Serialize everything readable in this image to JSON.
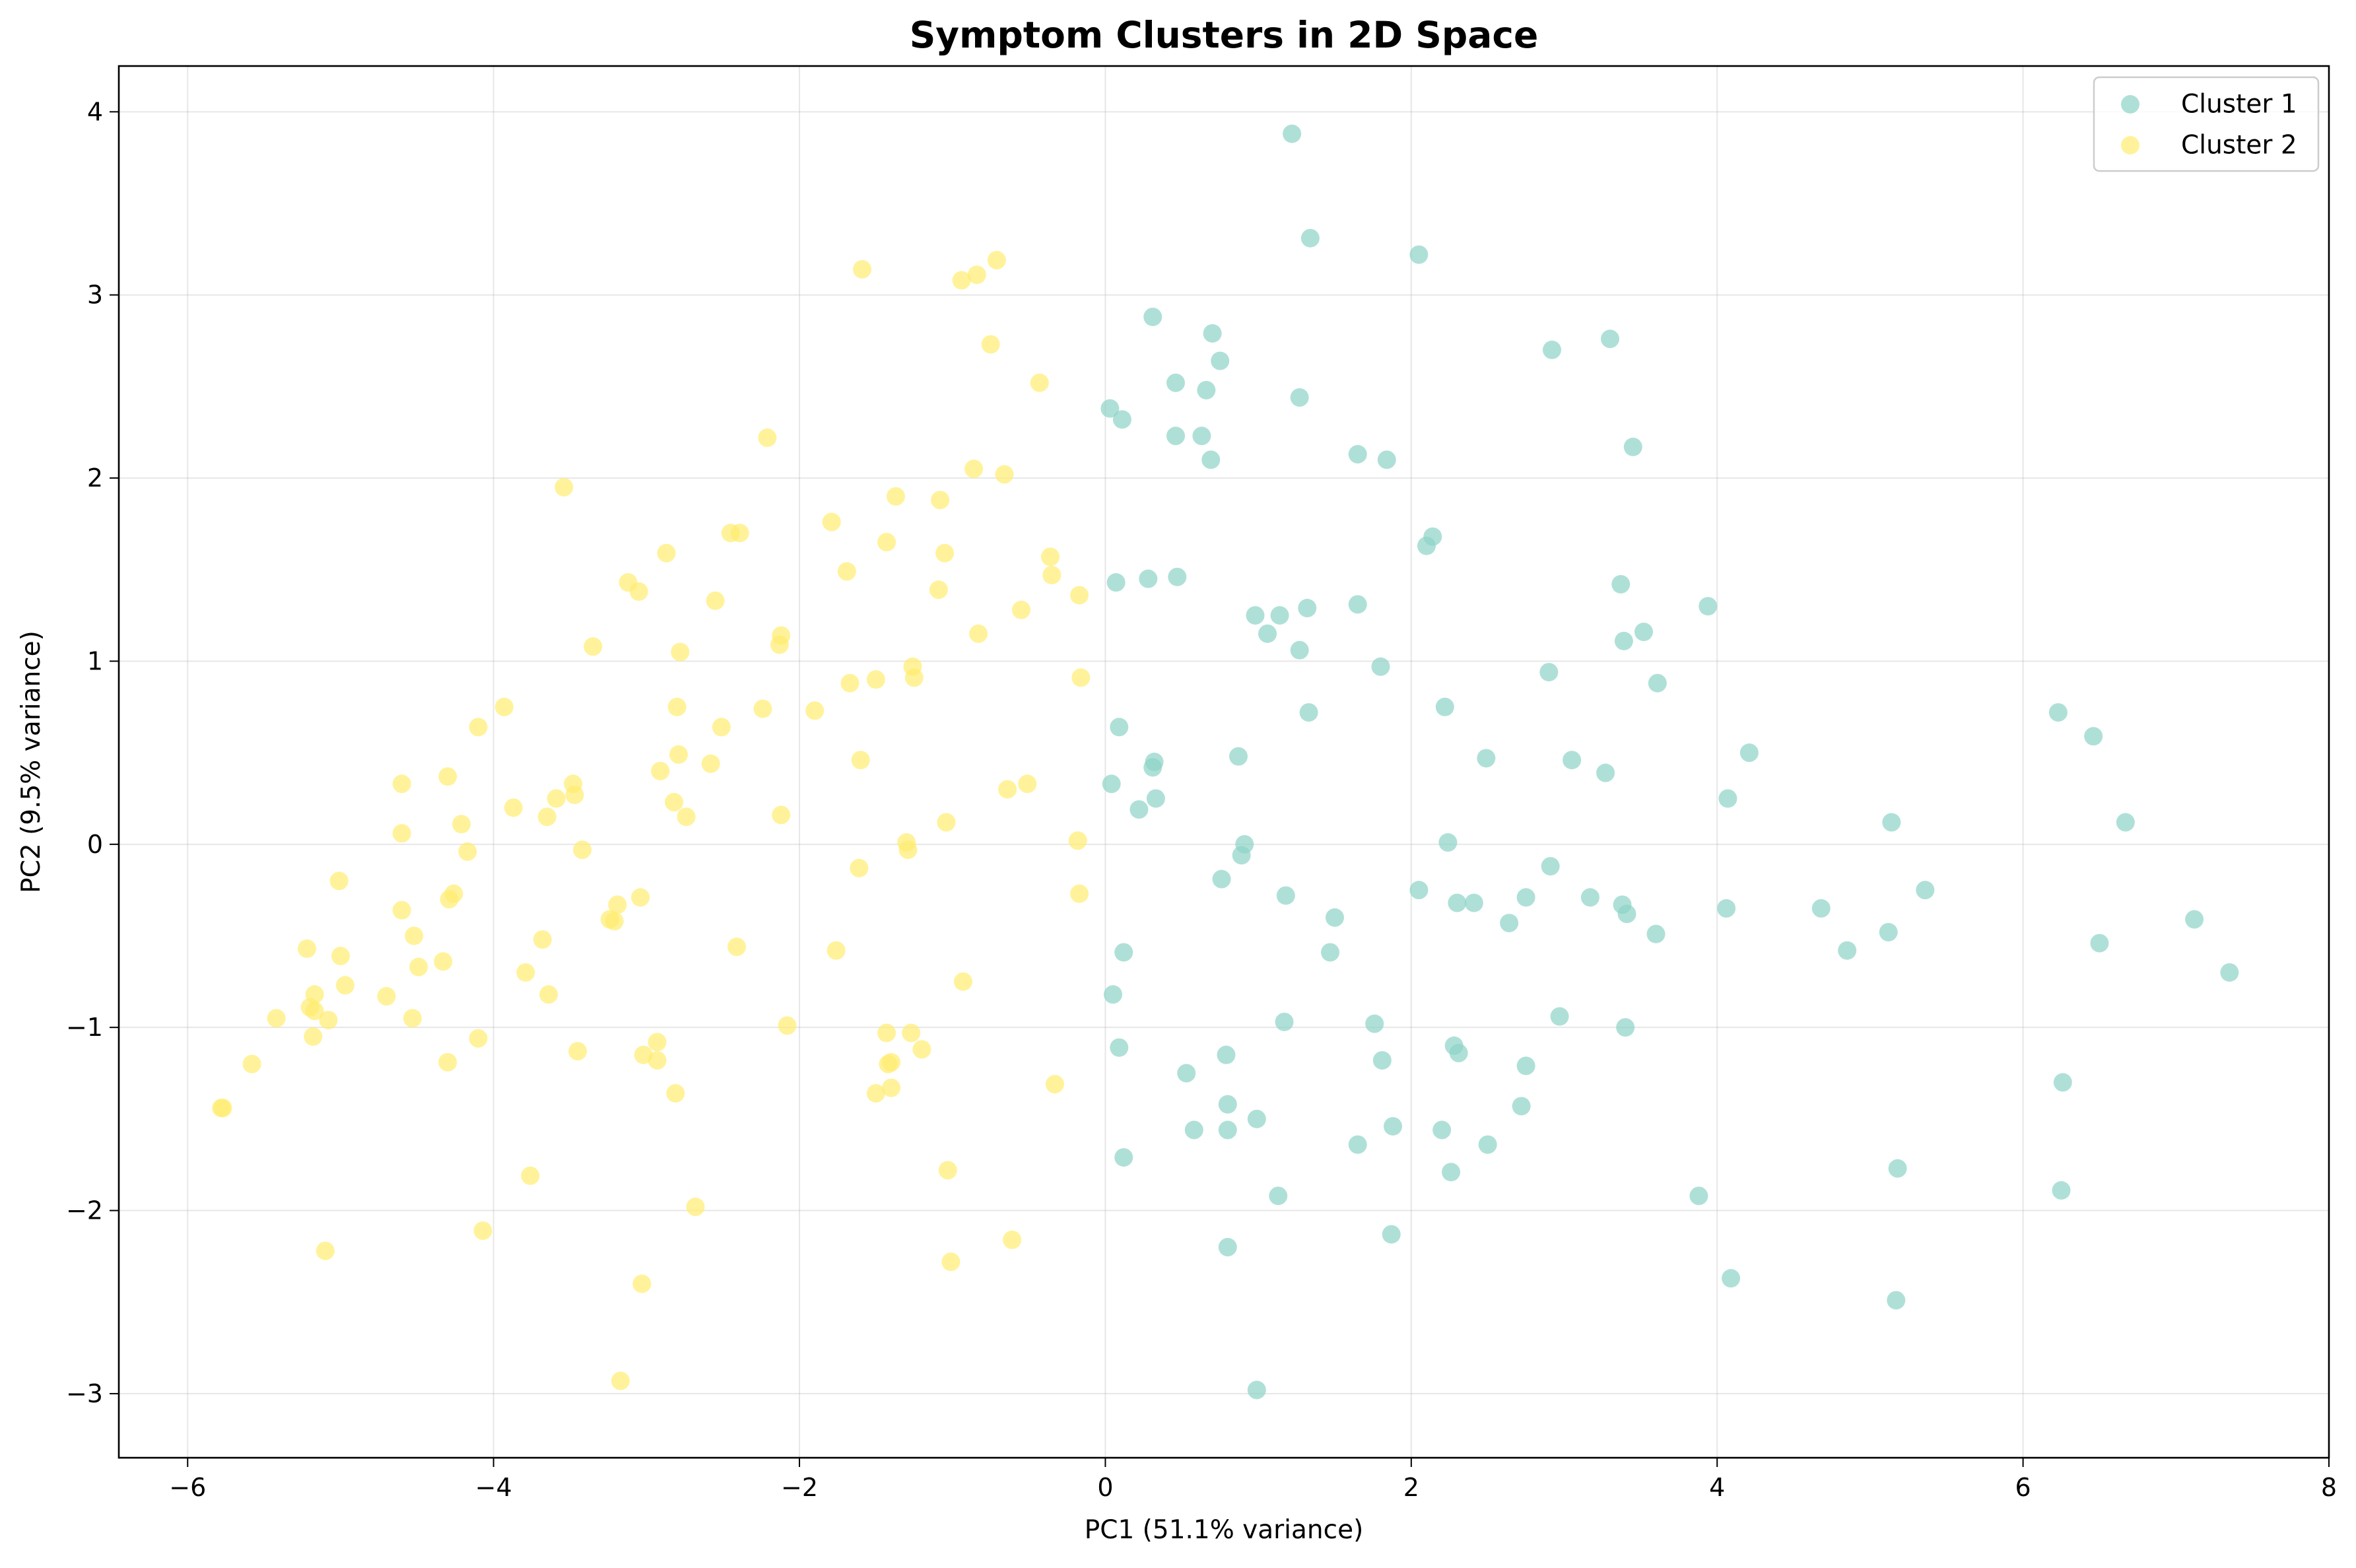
{
  "chart_data": {
    "type": "scatter",
    "title": "Symptom Clusters in 2D Space",
    "xlabel": "PC1 (51.1% variance)",
    "ylabel": "PC2 (9.5% variance)",
    "xlim": [
      -6.45,
      8.0
    ],
    "ylim": [
      -3.35,
      4.25
    ],
    "xticks": [
      -6,
      -4,
      -2,
      0,
      2,
      4,
      6,
      8
    ],
    "yticks": [
      -3,
      -2,
      -1,
      0,
      1,
      2,
      3,
      4
    ],
    "xtick_labels": [
      "−6",
      "−4",
      "−2",
      "0",
      "2",
      "4",
      "6",
      "8"
    ],
    "ytick_labels": [
      "−3",
      "−2",
      "−1",
      "0",
      "1",
      "2",
      "3",
      "4"
    ],
    "grid": true,
    "legend_position": "top-right",
    "series": [
      {
        "name": "Cluster 1",
        "color": "#8dd3c7",
        "points": [
          [
            1.22,
            3.88
          ],
          [
            1.34,
            3.31
          ],
          [
            2.05,
            3.22
          ],
          [
            0.31,
            2.88
          ],
          [
            0.7,
            2.79
          ],
          [
            0.75,
            2.64
          ],
          [
            2.92,
            2.7
          ],
          [
            3.3,
            2.76
          ],
          [
            0.46,
            2.52
          ],
          [
            0.66,
            2.48
          ],
          [
            0.03,
            2.38
          ],
          [
            0.11,
            2.32
          ],
          [
            1.27,
            2.44
          ],
          [
            0.46,
            2.23
          ],
          [
            0.63,
            2.23
          ],
          [
            0.69,
            2.1
          ],
          [
            1.65,
            2.13
          ],
          [
            1.84,
            2.1
          ],
          [
            3.45,
            2.17
          ],
          [
            2.14,
            1.68
          ],
          [
            2.1,
            1.63
          ],
          [
            0.07,
            1.43
          ],
          [
            0.28,
            1.45
          ],
          [
            0.47,
            1.46
          ],
          [
            3.37,
            1.42
          ],
          [
            3.94,
            1.3
          ],
          [
            1.32,
            1.29
          ],
          [
            1.65,
            1.31
          ],
          [
            0.98,
            1.25
          ],
          [
            1.14,
            1.25
          ],
          [
            1.06,
            1.15
          ],
          [
            3.52,
            1.16
          ],
          [
            3.39,
            1.11
          ],
          [
            1.27,
            1.06
          ],
          [
            1.8,
            0.97
          ],
          [
            2.9,
            0.94
          ],
          [
            3.61,
            0.88
          ],
          [
            2.22,
            0.75
          ],
          [
            1.33,
            0.72
          ],
          [
            0.09,
            0.64
          ],
          [
            0.87,
            0.48
          ],
          [
            0.32,
            0.45
          ],
          [
            0.31,
            0.42
          ],
          [
            2.49,
            0.47
          ],
          [
            3.05,
            0.46
          ],
          [
            3.27,
            0.39
          ],
          [
            4.21,
            0.5
          ],
          [
            6.23,
            0.72
          ],
          [
            6.46,
            0.59
          ],
          [
            0.04,
            0.33
          ],
          [
            0.33,
            0.25
          ],
          [
            0.22,
            0.19
          ],
          [
            4.07,
            0.25
          ],
          [
            5.14,
            0.12
          ],
          [
            6.67,
            0.12
          ],
          [
            0.91,
            0.0
          ],
          [
            2.24,
            0.01
          ],
          [
            0.89,
            -0.06
          ],
          [
            2.91,
            -0.12
          ],
          [
            0.76,
            -0.19
          ],
          [
            1.18,
            -0.28
          ],
          [
            2.05,
            -0.25
          ],
          [
            2.3,
            -0.32
          ],
          [
            2.41,
            -0.32
          ],
          [
            2.75,
            -0.29
          ],
          [
            3.17,
            -0.29
          ],
          [
            3.38,
            -0.33
          ],
          [
            3.41,
            -0.38
          ],
          [
            4.06,
            -0.35
          ],
          [
            4.68,
            -0.35
          ],
          [
            5.36,
            -0.25
          ],
          [
            1.5,
            -0.4
          ],
          [
            2.64,
            -0.43
          ],
          [
            3.6,
            -0.49
          ],
          [
            5.12,
            -0.48
          ],
          [
            7.12,
            -0.41
          ],
          [
            6.5,
            -0.54
          ],
          [
            0.12,
            -0.59
          ],
          [
            1.47,
            -0.59
          ],
          [
            4.85,
            -0.58
          ],
          [
            7.35,
            -0.7
          ],
          [
            0.05,
            -0.82
          ],
          [
            2.97,
            -0.94
          ],
          [
            1.17,
            -0.97
          ],
          [
            1.76,
            -0.98
          ],
          [
            3.4,
            -1.0
          ],
          [
            0.09,
            -1.11
          ],
          [
            2.28,
            -1.1
          ],
          [
            2.31,
            -1.14
          ],
          [
            0.79,
            -1.15
          ],
          [
            1.81,
            -1.18
          ],
          [
            2.75,
            -1.21
          ],
          [
            0.53,
            -1.25
          ],
          [
            6.26,
            -1.3
          ],
          [
            0.8,
            -1.42
          ],
          [
            2.72,
            -1.43
          ],
          [
            0.99,
            -1.5
          ],
          [
            1.88,
            -1.54
          ],
          [
            0.58,
            -1.56
          ],
          [
            0.8,
            -1.56
          ],
          [
            2.2,
            -1.56
          ],
          [
            1.65,
            -1.64
          ],
          [
            2.5,
            -1.64
          ],
          [
            0.12,
            -1.71
          ],
          [
            5.18,
            -1.77
          ],
          [
            2.26,
            -1.79
          ],
          [
            6.25,
            -1.89
          ],
          [
            1.13,
            -1.92
          ],
          [
            3.88,
            -1.92
          ],
          [
            1.87,
            -2.13
          ],
          [
            0.8,
            -2.2
          ],
          [
            4.09,
            -2.37
          ],
          [
            5.17,
            -2.49
          ],
          [
            0.99,
            -2.98
          ]
        ]
      },
      {
        "name": "Cluster 2",
        "color": "#ffed6f",
        "points": [
          [
            -1.59,
            3.14
          ],
          [
            -0.71,
            3.19
          ],
          [
            -0.84,
            3.11
          ],
          [
            -0.94,
            3.08
          ],
          [
            -0.75,
            2.73
          ],
          [
            -0.43,
            2.52
          ],
          [
            -2.21,
            2.22
          ],
          [
            -0.86,
            2.05
          ],
          [
            -0.66,
            2.02
          ],
          [
            -3.54,
            1.95
          ],
          [
            -1.37,
            1.9
          ],
          [
            -1.08,
            1.88
          ],
          [
            -1.79,
            1.76
          ],
          [
            -2.45,
            1.7
          ],
          [
            -2.39,
            1.7
          ],
          [
            -1.43,
            1.65
          ],
          [
            -1.05,
            1.59
          ],
          [
            -2.87,
            1.59
          ],
          [
            -0.36,
            1.57
          ],
          [
            -1.69,
            1.49
          ],
          [
            -0.35,
            1.47
          ],
          [
            -3.12,
            1.43
          ],
          [
            -3.05,
            1.38
          ],
          [
            -1.09,
            1.39
          ],
          [
            -0.17,
            1.36
          ],
          [
            -2.55,
            1.33
          ],
          [
            -0.55,
            1.28
          ],
          [
            -2.12,
            1.14
          ],
          [
            -0.83,
            1.15
          ],
          [
            -2.13,
            1.09
          ],
          [
            -3.35,
            1.08
          ],
          [
            -2.78,
            1.05
          ],
          [
            -1.26,
            0.97
          ],
          [
            -1.25,
            0.91
          ],
          [
            -1.5,
            0.9
          ],
          [
            -1.67,
            0.88
          ],
          [
            -0.16,
            0.91
          ],
          [
            -2.8,
            0.75
          ],
          [
            -2.24,
            0.74
          ],
          [
            -1.9,
            0.73
          ],
          [
            -3.93,
            0.75
          ],
          [
            -4.1,
            0.64
          ],
          [
            -2.51,
            0.64
          ],
          [
            -2.79,
            0.49
          ],
          [
            -1.6,
            0.46
          ],
          [
            -2.58,
            0.44
          ],
          [
            -2.91,
            0.4
          ],
          [
            -4.3,
            0.37
          ],
          [
            -4.6,
            0.33
          ],
          [
            -3.48,
            0.33
          ],
          [
            -0.51,
            0.33
          ],
          [
            -0.64,
            0.3
          ],
          [
            -3.47,
            0.27
          ],
          [
            -3.59,
            0.25
          ],
          [
            -2.82,
            0.23
          ],
          [
            -3.87,
            0.2
          ],
          [
            -2.74,
            0.15
          ],
          [
            -3.65,
            0.15
          ],
          [
            -2.12,
            0.16
          ],
          [
            -1.04,
            0.12
          ],
          [
            -4.21,
            0.11
          ],
          [
            -4.6,
            0.06
          ],
          [
            -1.3,
            0.01
          ],
          [
            -0.18,
            0.02
          ],
          [
            -1.29,
            -0.03
          ],
          [
            -3.42,
            -0.03
          ],
          [
            -4.17,
            -0.04
          ],
          [
            -1.61,
            -0.13
          ],
          [
            -5.01,
            -0.2
          ],
          [
            -4.26,
            -0.27
          ],
          [
            -4.29,
            -0.3
          ],
          [
            -3.04,
            -0.29
          ],
          [
            -0.17,
            -0.27
          ],
          [
            -3.19,
            -0.33
          ],
          [
            -4.6,
            -0.36
          ],
          [
            -3.24,
            -0.41
          ],
          [
            -3.21,
            -0.42
          ],
          [
            -4.52,
            -0.5
          ],
          [
            -3.68,
            -0.52
          ],
          [
            -2.41,
            -0.56
          ],
          [
            -5.22,
            -0.57
          ],
          [
            -1.76,
            -0.58
          ],
          [
            -5.0,
            -0.61
          ],
          [
            -4.33,
            -0.64
          ],
          [
            -4.49,
            -0.67
          ],
          [
            -3.79,
            -0.7
          ],
          [
            -0.93,
            -0.75
          ],
          [
            -4.97,
            -0.77
          ],
          [
            -5.17,
            -0.82
          ],
          [
            -3.64,
            -0.82
          ],
          [
            -4.7,
            -0.83
          ],
          [
            -5.2,
            -0.89
          ],
          [
            -5.17,
            -0.91
          ],
          [
            -5.42,
            -0.95
          ],
          [
            -5.08,
            -0.96
          ],
          [
            -4.53,
            -0.95
          ],
          [
            -2.08,
            -0.99
          ],
          [
            -1.43,
            -1.03
          ],
          [
            -1.27,
            -1.03
          ],
          [
            -5.18,
            -1.05
          ],
          [
            -4.1,
            -1.06
          ],
          [
            -2.93,
            -1.08
          ],
          [
            -1.2,
            -1.12
          ],
          [
            -3.45,
            -1.13
          ],
          [
            -3.02,
            -1.15
          ],
          [
            -4.3,
            -1.19
          ],
          [
            -2.93,
            -1.18
          ],
          [
            -1.4,
            -1.19
          ],
          [
            -1.42,
            -1.2
          ],
          [
            -5.58,
            -1.2
          ],
          [
            -0.33,
            -1.31
          ],
          [
            -1.4,
            -1.33
          ],
          [
            -1.5,
            -1.36
          ],
          [
            -2.81,
            -1.36
          ],
          [
            -5.77,
            -1.44
          ],
          [
            -5.78,
            -1.44
          ],
          [
            -1.03,
            -1.78
          ],
          [
            -3.76,
            -1.81
          ],
          [
            -2.68,
            -1.98
          ],
          [
            -4.07,
            -2.11
          ],
          [
            -0.61,
            -2.16
          ],
          [
            -5.1,
            -2.22
          ],
          [
            -1.01,
            -2.28
          ],
          [
            -3.03,
            -2.4
          ],
          [
            -3.17,
            -2.93
          ]
        ]
      }
    ]
  }
}
